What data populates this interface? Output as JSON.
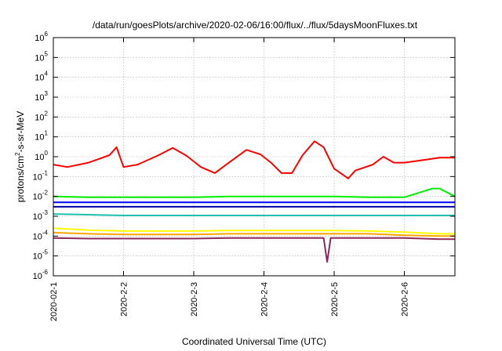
{
  "chart_data": {
    "type": "line",
    "title": "/data/run/goesPlots/archive/2020-02-06/16:00/flux/../flux/5daysMoonFluxes.txt",
    "xlabel": "Coordinated Universal Time (UTC)",
    "ylabel_parts": {
      "pre": "protons/cm",
      "sup": "2",
      "post": "-s-sr-MeV"
    },
    "y_scale": "log",
    "ylim": [
      1e-06,
      1000000.0
    ],
    "y_ticks": [
      {
        "base": "10",
        "exp": "-6"
      },
      {
        "base": "10",
        "exp": "-5"
      },
      {
        "base": "10",
        "exp": "-4"
      },
      {
        "base": "10",
        "exp": "-3"
      },
      {
        "base": "10",
        "exp": "-2"
      },
      {
        "base": "10",
        "exp": "-1"
      },
      {
        "base": "10",
        "exp": "0"
      },
      {
        "base": "10",
        "exp": "1"
      },
      {
        "base": "10",
        "exp": "2"
      },
      {
        "base": "10",
        "exp": "3"
      },
      {
        "base": "10",
        "exp": "4"
      },
      {
        "base": "10",
        "exp": "5"
      },
      {
        "base": "10",
        "exp": "6"
      }
    ],
    "x_range_days": [
      0,
      5.72
    ],
    "x_ticks": [
      {
        "label": "2020-02-1",
        "day": 0
      },
      {
        "label": "2020-2-2",
        "day": 1
      },
      {
        "label": "2020-2-3",
        "day": 2
      },
      {
        "label": "2020-2-4",
        "day": 3
      },
      {
        "label": "2020-2-5",
        "day": 4
      },
      {
        "label": "2020-2-6",
        "day": 5
      }
    ],
    "grid": true,
    "legend": "none",
    "series": [
      {
        "color": "#8b2a5a",
        "points": [
          [
            0,
            8e-05
          ],
          [
            0.5,
            7.5e-05
          ],
          [
            1,
            7.5e-05
          ],
          [
            1.5,
            7.5e-05
          ],
          [
            2,
            7.5e-05
          ],
          [
            2.5,
            8e-05
          ],
          [
            3,
            8e-05
          ],
          [
            3.5,
            8e-05
          ],
          [
            3.85,
            8e-05
          ],
          [
            3.9,
            5e-06
          ],
          [
            3.95,
            8e-05
          ],
          [
            4.5,
            8e-05
          ],
          [
            5,
            8e-05
          ],
          [
            5.5,
            7e-05
          ],
          [
            5.72,
            7e-05
          ]
        ]
      },
      {
        "color": "#ffa500",
        "points": [
          [
            0,
            0.00015
          ],
          [
            0.5,
            0.00013
          ],
          [
            1,
            0.00012
          ],
          [
            1.5,
            0.00012
          ],
          [
            2,
            0.00012
          ],
          [
            2.5,
            0.00013
          ],
          [
            3,
            0.00013
          ],
          [
            3.5,
            0.00013
          ],
          [
            4,
            0.00013
          ],
          [
            4.5,
            0.00013
          ],
          [
            5,
            0.00011
          ],
          [
            5.5,
            0.0001
          ],
          [
            5.72,
            0.0001
          ]
        ]
      },
      {
        "color": "#ffff00",
        "points": [
          [
            0,
            0.00025
          ],
          [
            0.5,
            0.0002
          ],
          [
            1,
            0.00018
          ],
          [
            1.5,
            0.00018
          ],
          [
            2,
            0.00018
          ],
          [
            2.5,
            0.00019
          ],
          [
            3,
            0.00019
          ],
          [
            3.5,
            0.00019
          ],
          [
            4,
            0.00019
          ],
          [
            4.5,
            0.00018
          ],
          [
            5,
            0.00016
          ],
          [
            5.5,
            0.00013
          ],
          [
            5.72,
            0.00013
          ]
        ]
      },
      {
        "color": "#20c0b0",
        "points": [
          [
            0,
            0.0013
          ],
          [
            0.5,
            0.0012
          ],
          [
            1,
            0.0011
          ],
          [
            1.5,
            0.0011
          ],
          [
            2,
            0.0011
          ],
          [
            2.5,
            0.0011
          ],
          [
            3,
            0.0011
          ],
          [
            3.5,
            0.0011
          ],
          [
            4,
            0.0011
          ],
          [
            4.5,
            0.0011
          ],
          [
            5,
            0.0011
          ],
          [
            5.5,
            0.0011
          ],
          [
            5.72,
            0.0011
          ]
        ]
      },
      {
        "color": "#0000aa",
        "points": [
          [
            0,
            0.003
          ],
          [
            0.5,
            0.003
          ],
          [
            1,
            0.003
          ],
          [
            1.5,
            0.003
          ],
          [
            2,
            0.003
          ],
          [
            2.5,
            0.003
          ],
          [
            3,
            0.003
          ],
          [
            3.5,
            0.003
          ],
          [
            4,
            0.003
          ],
          [
            4.5,
            0.003
          ],
          [
            5,
            0.003
          ],
          [
            5.5,
            0.003
          ],
          [
            5.72,
            0.003
          ]
        ]
      },
      {
        "color": "#0000ff",
        "points": [
          [
            0,
            0.005
          ],
          [
            0.5,
            0.005
          ],
          [
            1,
            0.005
          ],
          [
            1.5,
            0.005
          ],
          [
            2,
            0.005
          ],
          [
            2.5,
            0.005
          ],
          [
            3,
            0.005
          ],
          [
            3.5,
            0.005
          ],
          [
            4,
            0.005
          ],
          [
            4.5,
            0.005
          ],
          [
            5,
            0.005
          ],
          [
            5.5,
            0.005
          ],
          [
            5.72,
            0.005
          ]
        ]
      },
      {
        "color": "#00ee00",
        "points": [
          [
            0,
            0.01
          ],
          [
            0.5,
            0.009
          ],
          [
            1,
            0.009
          ],
          [
            1.5,
            0.009
          ],
          [
            2,
            0.009
          ],
          [
            2.5,
            0.01
          ],
          [
            3,
            0.01
          ],
          [
            3.5,
            0.01
          ],
          [
            4,
            0.01
          ],
          [
            4.5,
            0.009
          ],
          [
            5,
            0.009
          ],
          [
            5.4,
            0.025
          ],
          [
            5.5,
            0.025
          ],
          [
            5.72,
            0.01
          ]
        ]
      },
      {
        "color": "#ff0000",
        "points": [
          [
            0,
            0.4
          ],
          [
            0.2,
            0.3
          ],
          [
            0.5,
            0.5
          ],
          [
            0.8,
            1.2
          ],
          [
            0.9,
            3
          ],
          [
            1,
            0.3
          ],
          [
            1.2,
            0.4
          ],
          [
            1.5,
            1.2
          ],
          [
            1.7,
            2.8
          ],
          [
            1.9,
            1.1
          ],
          [
            2.1,
            0.3
          ],
          [
            2.3,
            0.15
          ],
          [
            2.5,
            0.5
          ],
          [
            2.75,
            2.2
          ],
          [
            2.95,
            1.3
          ],
          [
            3.1,
            0.5
          ],
          [
            3.25,
            0.15
          ],
          [
            3.4,
            0.15
          ],
          [
            3.55,
            1.2
          ],
          [
            3.72,
            6
          ],
          [
            3.85,
            3
          ],
          [
            4,
            0.25
          ],
          [
            4.2,
            0.08
          ],
          [
            4.3,
            0.2
          ],
          [
            4.55,
            0.4
          ],
          [
            4.7,
            1
          ],
          [
            4.85,
            0.5
          ],
          [
            5,
            0.5
          ],
          [
            5.3,
            0.7
          ],
          [
            5.5,
            0.9
          ],
          [
            5.72,
            0.9
          ]
        ]
      }
    ]
  }
}
